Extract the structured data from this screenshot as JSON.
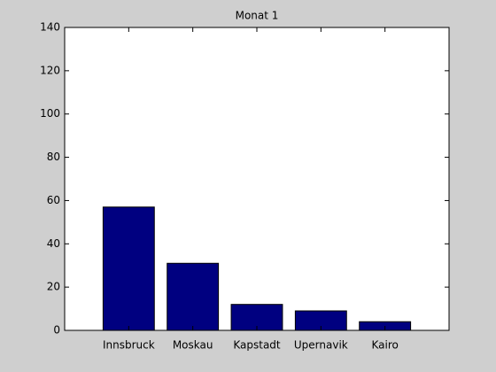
{
  "chart_data": {
    "type": "bar",
    "title": "Monat 1",
    "categories": [
      "Innsbruck",
      "Moskau",
      "Kapstadt",
      "Upernavik",
      "Kairo"
    ],
    "values": [
      57,
      31,
      12,
      9,
      4
    ],
    "color": "#000080",
    "ylim": [
      0,
      140
    ],
    "yticks": [
      0,
      20,
      40,
      60,
      80,
      100,
      120,
      140
    ],
    "grid": false
  }
}
